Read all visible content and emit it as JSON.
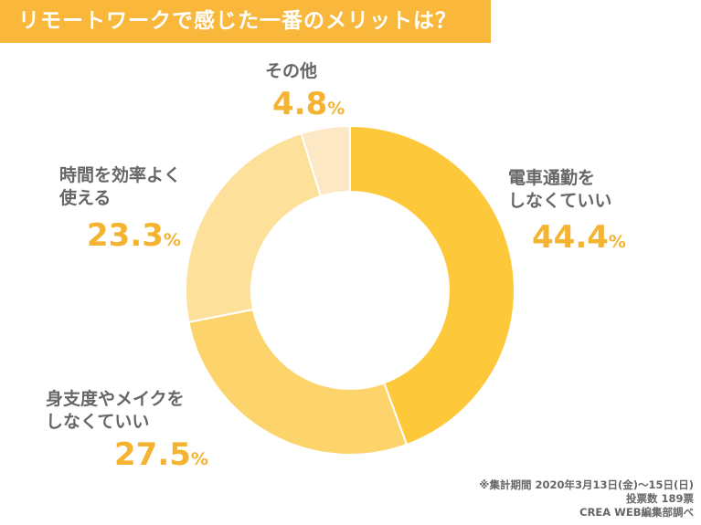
{
  "title": "リモートワークで感じた一番のメリットは？",
  "chart_data": {
    "type": "pie",
    "donut": true,
    "title": "リモートワークで感じた一番のメリットは？",
    "categories": [
      "電車通勤をしなくていい",
      "身支度やメイクをしなくていい",
      "時間を効率よく使える",
      "その他"
    ],
    "values": [
      44.4,
      27.5,
      23.3,
      4.8
    ],
    "unit": "%",
    "colors": [
      "#fdc93a",
      "#fdd46c",
      "#fde09a",
      "#fde8c6"
    ],
    "labels": [
      {
        "line1": "電車通勤を",
        "line2": "しなくていい",
        "value": "44.4",
        "unit": "%"
      },
      {
        "line1": "身支度やメイクを",
        "line2": "しなくていい",
        "value": "27.5",
        "unit": "%"
      },
      {
        "line1": "時間を効率よく",
        "line2": "使える",
        "value": "23.3",
        "unit": "%"
      },
      {
        "line1": "その他",
        "line2": "",
        "value": "4.8",
        "unit": "%"
      }
    ]
  },
  "footnote": {
    "period": "※集計期間 2020年3月13日(金)～15日(日)",
    "votes": "投票数 189票",
    "source": "CREA WEB編集部調べ"
  }
}
